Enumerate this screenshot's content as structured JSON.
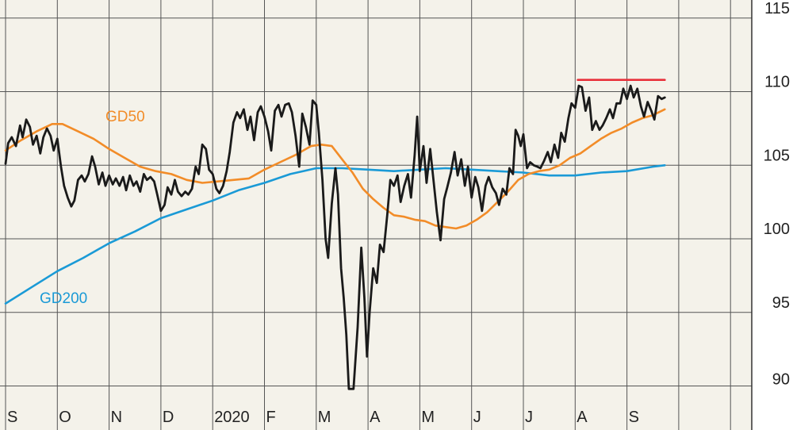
{
  "chart_data": {
    "type": "line",
    "title": "",
    "xlabel": "",
    "ylabel": "",
    "grid": true,
    "x_range": [
      0,
      12.75
    ],
    "ylim": [
      88.5,
      116.5
    ],
    "y_ticks": [
      90,
      95,
      100,
      105,
      110,
      115
    ],
    "x_months": [
      "S",
      "O",
      "N",
      "D",
      "2020",
      "F",
      "M",
      "A",
      "M",
      "J",
      "J",
      "A",
      "S"
    ],
    "colors": {
      "price": "#1a1a1a",
      "gd50": "#f28c28",
      "gd200": "#1a9ad6",
      "resistance": "#e8303a",
      "grid": "#555555",
      "plot_bg": "#f4f2ea"
    },
    "series": [
      {
        "key": "price",
        "points": [
          [
            0,
            105.1
          ],
          [
            0.05,
            106.5
          ],
          [
            0.12,
            106.9
          ],
          [
            0.2,
            106.3
          ],
          [
            0.28,
            107.7
          ],
          [
            0.33,
            106.9
          ],
          [
            0.4,
            108.1
          ],
          [
            0.47,
            107.6
          ],
          [
            0.53,
            106.4
          ],
          [
            0.6,
            107.0
          ],
          [
            0.67,
            105.8
          ],
          [
            0.73,
            106.9
          ],
          [
            0.8,
            107.5
          ],
          [
            0.87,
            107.0
          ],
          [
            0.93,
            106.0
          ],
          [
            1.0,
            106.8
          ],
          [
            1.07,
            104.9
          ],
          [
            1.13,
            103.6
          ],
          [
            1.2,
            102.8
          ],
          [
            1.27,
            102.2
          ],
          [
            1.33,
            102.6
          ],
          [
            1.4,
            104.0
          ],
          [
            1.47,
            104.3
          ],
          [
            1.53,
            103.9
          ],
          [
            1.6,
            104.4
          ],
          [
            1.67,
            105.6
          ],
          [
            1.73,
            104.9
          ],
          [
            1.8,
            103.7
          ],
          [
            1.87,
            104.5
          ],
          [
            1.93,
            103.6
          ],
          [
            2.0,
            104.3
          ],
          [
            2.07,
            103.7
          ],
          [
            2.13,
            104.1
          ],
          [
            2.2,
            103.6
          ],
          [
            2.27,
            104.2
          ],
          [
            2.33,
            103.3
          ],
          [
            2.4,
            104.3
          ],
          [
            2.47,
            103.6
          ],
          [
            2.53,
            103.9
          ],
          [
            2.6,
            103.2
          ],
          [
            2.67,
            104.4
          ],
          [
            2.73,
            104.0
          ],
          [
            2.8,
            104.2
          ],
          [
            2.87,
            103.9
          ],
          [
            2.93,
            103.0
          ],
          [
            3.0,
            101.9
          ],
          [
            3.07,
            102.3
          ],
          [
            3.13,
            103.5
          ],
          [
            3.2,
            103.0
          ],
          [
            3.27,
            104.0
          ],
          [
            3.33,
            103.2
          ],
          [
            3.4,
            102.9
          ],
          [
            3.47,
            103.2
          ],
          [
            3.53,
            103.0
          ],
          [
            3.6,
            103.4
          ],
          [
            3.67,
            104.9
          ],
          [
            3.73,
            104.4
          ],
          [
            3.8,
            106.4
          ],
          [
            3.87,
            106.1
          ],
          [
            3.93,
            104.7
          ],
          [
            4.0,
            104.4
          ],
          [
            4.07,
            103.4
          ],
          [
            4.13,
            103.1
          ],
          [
            4.2,
            103.6
          ],
          [
            4.27,
            104.6
          ],
          [
            4.33,
            105.9
          ],
          [
            4.4,
            107.9
          ],
          [
            4.47,
            108.6
          ],
          [
            4.53,
            108.2
          ],
          [
            4.6,
            108.8
          ],
          [
            4.67,
            107.4
          ],
          [
            4.73,
            108.3
          ],
          [
            4.8,
            106.7
          ],
          [
            4.87,
            108.6
          ],
          [
            4.93,
            109.0
          ],
          [
            5.0,
            108.3
          ],
          [
            5.07,
            107.3
          ],
          [
            5.13,
            106.0
          ],
          [
            5.2,
            108.7
          ],
          [
            5.27,
            109.1
          ],
          [
            5.33,
            108.3
          ],
          [
            5.4,
            109.1
          ],
          [
            5.47,
            109.2
          ],
          [
            5.53,
            108.6
          ],
          [
            5.6,
            107.0
          ],
          [
            5.67,
            104.9
          ],
          [
            5.73,
            108.5
          ],
          [
            5.8,
            107.6
          ],
          [
            5.87,
            106.4
          ],
          [
            5.93,
            109.4
          ],
          [
            6.0,
            109.1
          ],
          [
            6.05,
            107.2
          ],
          [
            6.12,
            104.0
          ],
          [
            6.18,
            100.0
          ],
          [
            6.23,
            98.7
          ],
          [
            6.3,
            102.4
          ],
          [
            6.37,
            104.8
          ],
          [
            6.42,
            103.0
          ],
          [
            6.48,
            98.0
          ],
          [
            6.53,
            96.0
          ],
          [
            6.58,
            93.5
          ],
          [
            6.63,
            89.8
          ],
          [
            6.72,
            89.8
          ],
          [
            6.8,
            94.0
          ],
          [
            6.87,
            99.4
          ],
          [
            6.93,
            96.0
          ],
          [
            6.98,
            92.0
          ],
          [
            7.03,
            95.0
          ],
          [
            7.1,
            98.0
          ],
          [
            7.17,
            97.0
          ],
          [
            7.23,
            99.6
          ],
          [
            7.3,
            99.1
          ],
          [
            7.37,
            101.6
          ],
          [
            7.43,
            104.0
          ],
          [
            7.5,
            103.6
          ],
          [
            7.57,
            104.3
          ],
          [
            7.63,
            102.5
          ],
          [
            7.7,
            103.6
          ],
          [
            7.77,
            104.4
          ],
          [
            7.83,
            102.8
          ],
          [
            7.9,
            105.7
          ],
          [
            7.95,
            108.3
          ],
          [
            8.0,
            104.6
          ],
          [
            8.07,
            106.3
          ],
          [
            8.13,
            103.8
          ],
          [
            8.2,
            106.1
          ],
          [
            8.27,
            103.8
          ],
          [
            8.33,
            101.8
          ],
          [
            8.4,
            99.9
          ],
          [
            8.47,
            102.7
          ],
          [
            8.53,
            103.5
          ],
          [
            8.6,
            104.5
          ],
          [
            8.67,
            105.9
          ],
          [
            8.73,
            104.3
          ],
          [
            8.8,
            105.4
          ],
          [
            8.87,
            103.6
          ],
          [
            8.93,
            104.9
          ],
          [
            9.0,
            102.8
          ],
          [
            9.07,
            104.2
          ],
          [
            9.13,
            103.5
          ],
          [
            9.2,
            101.9
          ],
          [
            9.27,
            103.6
          ],
          [
            9.33,
            104.2
          ],
          [
            9.4,
            103.5
          ],
          [
            9.47,
            103.1
          ],
          [
            9.53,
            102.3
          ],
          [
            9.6,
            103.4
          ],
          [
            9.67,
            103.0
          ],
          [
            9.73,
            104.8
          ],
          [
            9.8,
            104.4
          ],
          [
            9.85,
            107.4
          ],
          [
            9.9,
            107.0
          ],
          [
            9.95,
            106.3
          ],
          [
            10.0,
            107.1
          ],
          [
            10.07,
            104.8
          ],
          [
            10.13,
            105.2
          ],
          [
            10.2,
            105.0
          ],
          [
            10.27,
            104.9
          ],
          [
            10.33,
            104.8
          ],
          [
            10.4,
            105.3
          ],
          [
            10.47,
            105.9
          ],
          [
            10.53,
            105.2
          ],
          [
            10.6,
            106.4
          ],
          [
            10.67,
            105.5
          ],
          [
            10.73,
            107.2
          ],
          [
            10.8,
            106.6
          ],
          [
            10.87,
            108.2
          ],
          [
            10.93,
            109.2
          ],
          [
            11.0,
            108.9
          ],
          [
            11.07,
            110.4
          ],
          [
            11.13,
            110.3
          ],
          [
            11.2,
            108.7
          ],
          [
            11.27,
            109.6
          ],
          [
            11.33,
            107.4
          ],
          [
            11.4,
            108.0
          ],
          [
            11.47,
            107.4
          ],
          [
            11.53,
            107.7
          ],
          [
            11.6,
            108.2
          ],
          [
            11.67,
            108.8
          ],
          [
            11.73,
            108.2
          ],
          [
            11.8,
            109.2
          ],
          [
            11.87,
            109.2
          ],
          [
            11.93,
            110.2
          ],
          [
            12.0,
            109.5
          ],
          [
            12.07,
            110.4
          ],
          [
            12.13,
            109.6
          ],
          [
            12.2,
            110.2
          ],
          [
            12.27,
            109.0
          ],
          [
            12.33,
            108.3
          ],
          [
            12.4,
            109.3
          ],
          [
            12.47,
            108.7
          ],
          [
            12.53,
            108.1
          ],
          [
            12.6,
            109.7
          ],
          [
            12.67,
            109.5
          ],
          [
            12.73,
            109.6
          ]
        ]
      },
      {
        "key": "gd50",
        "name": "GD50",
        "points": [
          [
            0,
            106.0
          ],
          [
            0.3,
            106.7
          ],
          [
            0.6,
            107.3
          ],
          [
            0.9,
            107.8
          ],
          [
            1.1,
            107.8
          ],
          [
            1.4,
            107.3
          ],
          [
            1.7,
            106.8
          ],
          [
            2.0,
            106.1
          ],
          [
            2.3,
            105.5
          ],
          [
            2.6,
            104.9
          ],
          [
            2.9,
            104.6
          ],
          [
            3.2,
            104.4
          ],
          [
            3.5,
            104.0
          ],
          [
            3.8,
            103.8
          ],
          [
            4.1,
            103.9
          ],
          [
            4.4,
            104.0
          ],
          [
            4.7,
            104.1
          ],
          [
            5.0,
            104.7
          ],
          [
            5.3,
            105.2
          ],
          [
            5.6,
            105.7
          ],
          [
            5.9,
            106.3
          ],
          [
            6.1,
            106.4
          ],
          [
            6.3,
            106.3
          ],
          [
            6.5,
            105.4
          ],
          [
            6.7,
            104.5
          ],
          [
            6.9,
            103.4
          ],
          [
            7.1,
            102.7
          ],
          [
            7.3,
            102.1
          ],
          [
            7.5,
            101.6
          ],
          [
            7.7,
            101.5
          ],
          [
            7.9,
            101.3
          ],
          [
            8.1,
            101.2
          ],
          [
            8.3,
            100.9
          ],
          [
            8.5,
            100.8
          ],
          [
            8.7,
            100.7
          ],
          [
            8.9,
            100.9
          ],
          [
            9.1,
            101.3
          ],
          [
            9.3,
            101.8
          ],
          [
            9.5,
            102.5
          ],
          [
            9.7,
            103.2
          ],
          [
            9.9,
            104.0
          ],
          [
            10.1,
            104.4
          ],
          [
            10.3,
            104.6
          ],
          [
            10.5,
            104.7
          ],
          [
            10.7,
            105.0
          ],
          [
            10.9,
            105.5
          ],
          [
            11.1,
            105.8
          ],
          [
            11.3,
            106.3
          ],
          [
            11.5,
            106.8
          ],
          [
            11.7,
            107.2
          ],
          [
            11.9,
            107.5
          ],
          [
            12.1,
            107.9
          ],
          [
            12.3,
            108.2
          ],
          [
            12.5,
            108.4
          ],
          [
            12.73,
            108.8
          ]
        ]
      },
      {
        "key": "gd200",
        "name": "GD200",
        "points": [
          [
            0,
            95.6
          ],
          [
            0.5,
            96.7
          ],
          [
            1.0,
            97.8
          ],
          [
            1.5,
            98.7
          ],
          [
            2.0,
            99.7
          ],
          [
            2.5,
            100.5
          ],
          [
            3.0,
            101.4
          ],
          [
            3.5,
            102.0
          ],
          [
            4.0,
            102.6
          ],
          [
            4.5,
            103.3
          ],
          [
            5.0,
            103.8
          ],
          [
            5.5,
            104.4
          ],
          [
            6.0,
            104.8
          ],
          [
            6.5,
            104.8
          ],
          [
            7.0,
            104.7
          ],
          [
            7.5,
            104.6
          ],
          [
            8.0,
            104.7
          ],
          [
            8.5,
            104.8
          ],
          [
            9.0,
            104.7
          ],
          [
            9.5,
            104.6
          ],
          [
            10.0,
            104.5
          ],
          [
            10.5,
            104.3
          ],
          [
            11.0,
            104.3
          ],
          [
            11.5,
            104.5
          ],
          [
            12.0,
            104.6
          ],
          [
            12.5,
            104.9
          ],
          [
            12.73,
            105.0
          ]
        ]
      },
      {
        "key": "resistance",
        "points": [
          [
            11.05,
            110.8
          ],
          [
            12.73,
            110.8
          ]
        ]
      }
    ]
  }
}
